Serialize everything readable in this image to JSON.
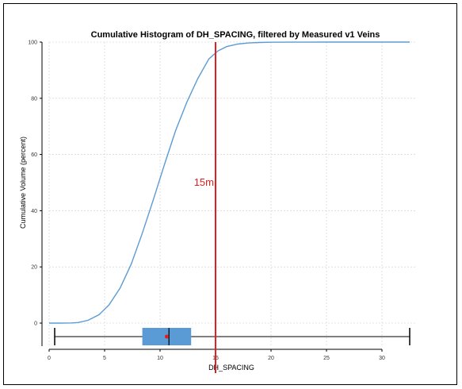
{
  "chart_data": {
    "type": "line",
    "title": "Cumulative Histogram of DH_SPACING, filtered by Measured v1 Veins",
    "xlabel": "DH_SPACING",
    "ylabel": "Cumulative Volume (percent)",
    "xlim": [
      0,
      33
    ],
    "ylim": [
      -8,
      100
    ],
    "xticks": [
      0,
      5,
      10,
      15,
      20,
      25,
      30
    ],
    "yticks": [
      0,
      20,
      40,
      60,
      80,
      100
    ],
    "grid": true,
    "series": [
      {
        "color": "#5b9bd5",
        "x": [
          0,
          1,
          2,
          2.6,
          3.5,
          4.5,
          5.4,
          6.4,
          7.4,
          8.4,
          9.4,
          10.4,
          11.4,
          12.4,
          13.4,
          14.4,
          15.2,
          16,
          17,
          18,
          19,
          20,
          22,
          25,
          30,
          32.5
        ],
        "y": [
          0,
          0,
          0.05,
          0.2,
          1,
          3,
          6.5,
          12.5,
          21,
          32,
          44,
          56.5,
          68.5,
          78.5,
          87,
          94,
          96.8,
          98.4,
          99.3,
          99.7,
          99.85,
          99.93,
          99.97,
          100,
          100,
          100
        ]
      }
    ],
    "reference_line": {
      "x": 15,
      "label": "15m",
      "color": "#e02020"
    },
    "boxplot": {
      "min": 0.5,
      "q1": 8.4,
      "median": 10.8,
      "mean": 10.6,
      "q3": 12.8,
      "max": 32.5,
      "box_color": "#5b9bd5",
      "mean_color": "#e02020"
    }
  }
}
